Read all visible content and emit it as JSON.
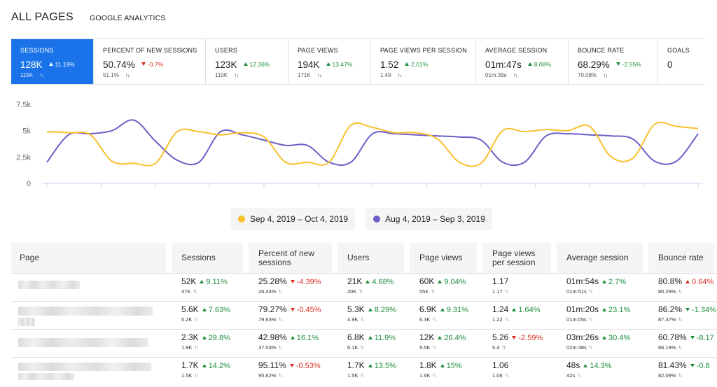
{
  "header": {
    "title": "ALL PAGES",
    "subtitle": "GOOGLE ANALYTICS"
  },
  "metrics": [
    {
      "label": "SESSIONS",
      "value": "128K",
      "delta": "11.19%",
      "dir": "up",
      "sub": "115K",
      "active": true
    },
    {
      "label": "PERCENT OF NEW SESSIONS",
      "value": "50.74%",
      "delta": "-0.7%",
      "dir": "down",
      "sub": "51.1%"
    },
    {
      "label": "USERS",
      "value": "123K",
      "delta": "12.36%",
      "dir": "up",
      "sub": "110K"
    },
    {
      "label": "PAGE VIEWS",
      "value": "194K",
      "delta": "13.47%",
      "dir": "up",
      "sub": "171K"
    },
    {
      "label": "PAGE VIEWS PER SESSION",
      "value": "1.52",
      "delta": "2.01%",
      "dir": "up",
      "sub": "1.49"
    },
    {
      "label": "AVERAGE SESSION",
      "value": "01m:47s",
      "delta": "8.08%",
      "dir": "up",
      "sub": "01m:39s"
    },
    {
      "label": "BOUNCE RATE",
      "value": "68.29%",
      "delta": "-2.55%",
      "dir": "up",
      "sub": "70.08%"
    },
    {
      "label": "GOALS",
      "value": "0"
    }
  ],
  "chart_data": {
    "type": "line",
    "yticks": [
      "7.5k",
      "5k",
      "2.5k",
      "0"
    ],
    "ylim": [
      0,
      7500
    ],
    "grid": false,
    "legend_position": "bottom",
    "x_count": 31,
    "series": [
      {
        "name": "Sep 4, 2019 – Oct 4, 2019",
        "color": "#f9c02e",
        "values": [
          4900,
          4800,
          4600,
          2100,
          1900,
          1900,
          4900,
          4900,
          4600,
          4800,
          4400,
          2000,
          2000,
          2000,
          5500,
          5300,
          4800,
          4800,
          4200,
          2000,
          1900,
          5000,
          4900,
          5100,
          5000,
          5400,
          2500,
          2400,
          5600,
          5400,
          5200
        ]
      },
      {
        "name": "Aug 4, 2019 – Sep 3, 2019",
        "color": "#6c5fc7",
        "values": [
          2000,
          4600,
          4700,
          5000,
          6000,
          4000,
          2200,
          2000,
          4900,
          4600,
          4100,
          3600,
          3600,
          2000,
          2000,
          4700,
          4700,
          4600,
          4500,
          4400,
          4100,
          2000,
          2000,
          4500,
          4700,
          4600,
          4500,
          4200,
          2100,
          2100,
          4700
        ]
      }
    ]
  },
  "table": {
    "headers": [
      "Page",
      "Sessions",
      "Percent of new sessions",
      "Users",
      "Page views",
      "Page views per session",
      "Average session",
      "Bounce rate"
    ],
    "rows": [
      {
        "cells": [
          {
            "v": "52K",
            "d": "9.11%",
            "dir": "up",
            "s": "47K"
          },
          {
            "v": "25.28%",
            "d": "-4.39%",
            "dir": "down",
            "s": "26.44%"
          },
          {
            "v": "21K",
            "d": "4.68%",
            "dir": "up",
            "s": "20K"
          },
          {
            "v": "60K",
            "d": "9.04%",
            "dir": "up",
            "s": "55K"
          },
          {
            "v": "1.17",
            "d": "",
            "dir": "",
            "s": "1.17"
          },
          {
            "v": "01m:54s",
            "d": "2.7%",
            "dir": "up",
            "s": "01m:51s"
          },
          {
            "v": "80.8%",
            "d": "0.64%",
            "dir": "down-up",
            "s": "80.29%"
          }
        ]
      },
      {
        "cells": [
          {
            "v": "5.6K",
            "d": "7.63%",
            "dir": "up",
            "s": "5.2K"
          },
          {
            "v": "79.27%",
            "d": "-0.45%",
            "dir": "down",
            "s": "79.63%"
          },
          {
            "v": "5.3K",
            "d": "8.29%",
            "dir": "up",
            "s": "4.9K"
          },
          {
            "v": "6.9K",
            "d": "9.31%",
            "dir": "up",
            "s": "6.3K"
          },
          {
            "v": "1.24",
            "d": "1.64%",
            "dir": "up",
            "s": "1.22"
          },
          {
            "v": "01m:20s",
            "d": "23.1%",
            "dir": "up",
            "s": "01m:05s"
          },
          {
            "v": "86.2%",
            "d": "-1.34%",
            "dir": "up-down",
            "s": "87.37%"
          }
        ]
      },
      {
        "cells": [
          {
            "v": "2.3K",
            "d": "29.8%",
            "dir": "up",
            "s": "1.8K"
          },
          {
            "v": "42.98%",
            "d": "16.1%",
            "dir": "up",
            "s": "37.03%"
          },
          {
            "v": "6.8K",
            "d": "11.9%",
            "dir": "up",
            "s": "6.1K"
          },
          {
            "v": "12K",
            "d": "26.4%",
            "dir": "up",
            "s": "9.5K"
          },
          {
            "v": "5.26",
            "d": "-2.59%",
            "dir": "down",
            "s": "5.4"
          },
          {
            "v": "03m:26s",
            "d": "30.4%",
            "dir": "up",
            "s": "02m:38s"
          },
          {
            "v": "60.78%",
            "d": "-8.17",
            "dir": "up-down",
            "s": "66.19%"
          }
        ]
      },
      {
        "cells": [
          {
            "v": "1.7K",
            "d": "14.2%",
            "dir": "up",
            "s": "1.5K"
          },
          {
            "v": "95.11%",
            "d": "-0.53%",
            "dir": "down",
            "s": "95.62%"
          },
          {
            "v": "1.7K",
            "d": "13.5%",
            "dir": "up",
            "s": "1.5K"
          },
          {
            "v": "1.8K",
            "d": "15%",
            "dir": "up",
            "s": "1.6K"
          },
          {
            "v": "1.06",
            "d": "",
            "dir": "",
            "s": "1.06"
          },
          {
            "v": "48s",
            "d": "14.3%",
            "dir": "up",
            "s": "42s"
          },
          {
            "v": "81.43%",
            "d": "-0.8",
            "dir": "up-down",
            "s": "82.09%"
          }
        ]
      }
    ]
  }
}
